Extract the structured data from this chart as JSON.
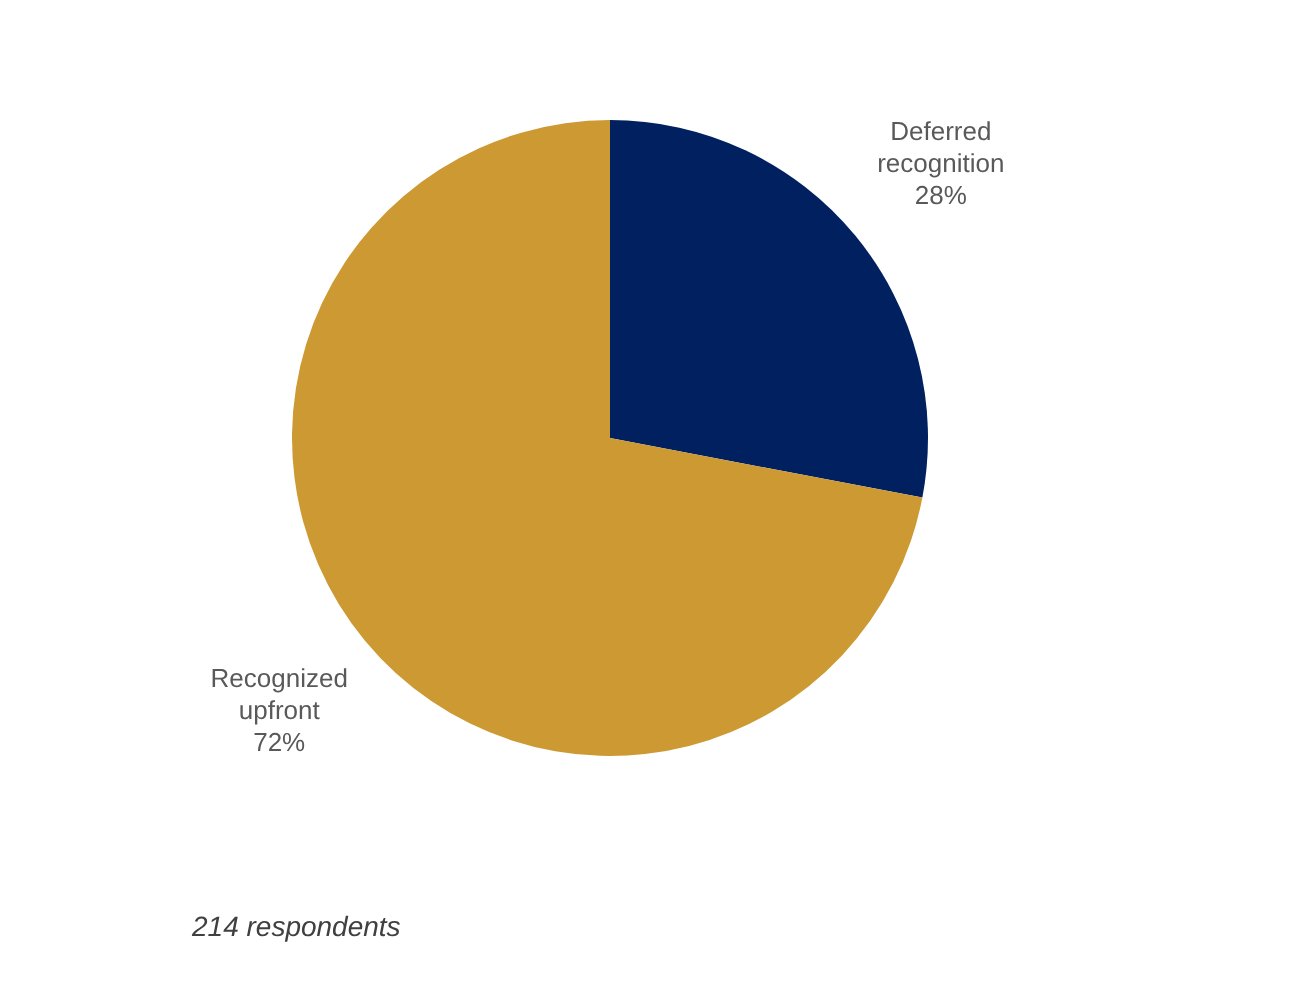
{
  "chart_data": {
    "type": "pie",
    "categories": [
      "Deferred recognition",
      "Recognized upfront"
    ],
    "values": [
      28,
      72
    ],
    "colors": [
      "#002060",
      "#cc9933"
    ],
    "value_labels": [
      "28%",
      "72%"
    ],
    "annotations": [
      "214 respondents"
    ]
  }
}
